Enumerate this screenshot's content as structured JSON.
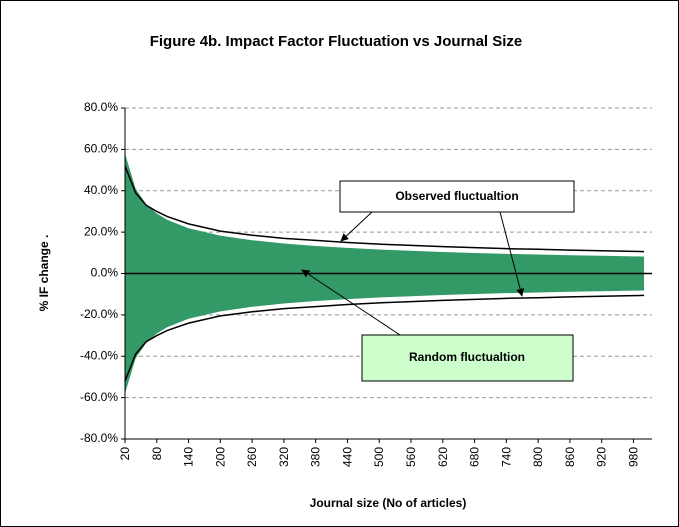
{
  "chart_data": {
    "type": "band-line",
    "title": "Figure 4b. Impact Factor Fluctuation vs Journal Size",
    "x_label": "Journal size (No of articles)",
    "y_label": "% IF change .",
    "x": [
      20,
      40,
      60,
      80,
      100,
      140,
      200,
      260,
      320,
      380,
      440,
      500,
      560,
      620,
      680,
      740,
      800,
      860,
      920,
      980,
      1000
    ],
    "series": [
      {
        "name": "Random fluctualtion",
        "color": "#339966",
        "values": [
          58,
          41,
          33.5,
          29,
          25.9,
          21.9,
          18.3,
          16.1,
          14.5,
          13.3,
          12.4,
          11.6,
          11.0,
          10.4,
          9.9,
          9.5,
          9.2,
          8.8,
          8.6,
          8.3,
          8.2
        ],
        "lower": [
          -58,
          -41,
          -33.5,
          -29,
          -25.9,
          -21.9,
          -18.3,
          -16.1,
          -14.5,
          -13.3,
          -12.4,
          -11.6,
          -11.0,
          -10.4,
          -9.9,
          -9.5,
          -9.2,
          -8.8,
          -8.6,
          -8.3,
          -8.2
        ]
      },
      {
        "name": "Observed fluctualtion",
        "color": "#000000",
        "values": [
          52,
          39,
          33,
          30,
          27.5,
          24,
          20.5,
          18.5,
          17,
          16,
          15,
          14.2,
          13.6,
          13,
          12.5,
          12,
          11.7,
          11.3,
          11,
          10.7,
          10.6
        ],
        "lower": [
          -52,
          -39,
          -33,
          -30,
          -27.5,
          -24,
          -20.5,
          -18.5,
          -17,
          -16,
          -15,
          -14.2,
          -13.6,
          -13,
          -12.5,
          -12,
          -11.7,
          -11.3,
          -11,
          -10.7,
          -10.6
        ]
      }
    ],
    "xlim": [
      20,
      1015
    ],
    "xticks": [
      20,
      80,
      140,
      200,
      260,
      320,
      380,
      440,
      500,
      560,
      620,
      680,
      740,
      800,
      860,
      920,
      980
    ],
    "ylim": [
      -80,
      80
    ],
    "yticks": [
      {
        "value": -80,
        "label": "-80.0%"
      },
      {
        "value": -60,
        "label": "-60.0%"
      },
      {
        "value": -40,
        "label": "-40.0%"
      },
      {
        "value": -20,
        "label": "-20.0%"
      },
      {
        "value": 0,
        "label": "0.0%"
      },
      {
        "value": 20,
        "label": "20.0%"
      },
      {
        "value": 40,
        "label": "40.0%"
      },
      {
        "value": 60,
        "label": "60.0%"
      },
      {
        "value": 80,
        "label": "80.0%"
      }
    ],
    "grid": true
  }
}
